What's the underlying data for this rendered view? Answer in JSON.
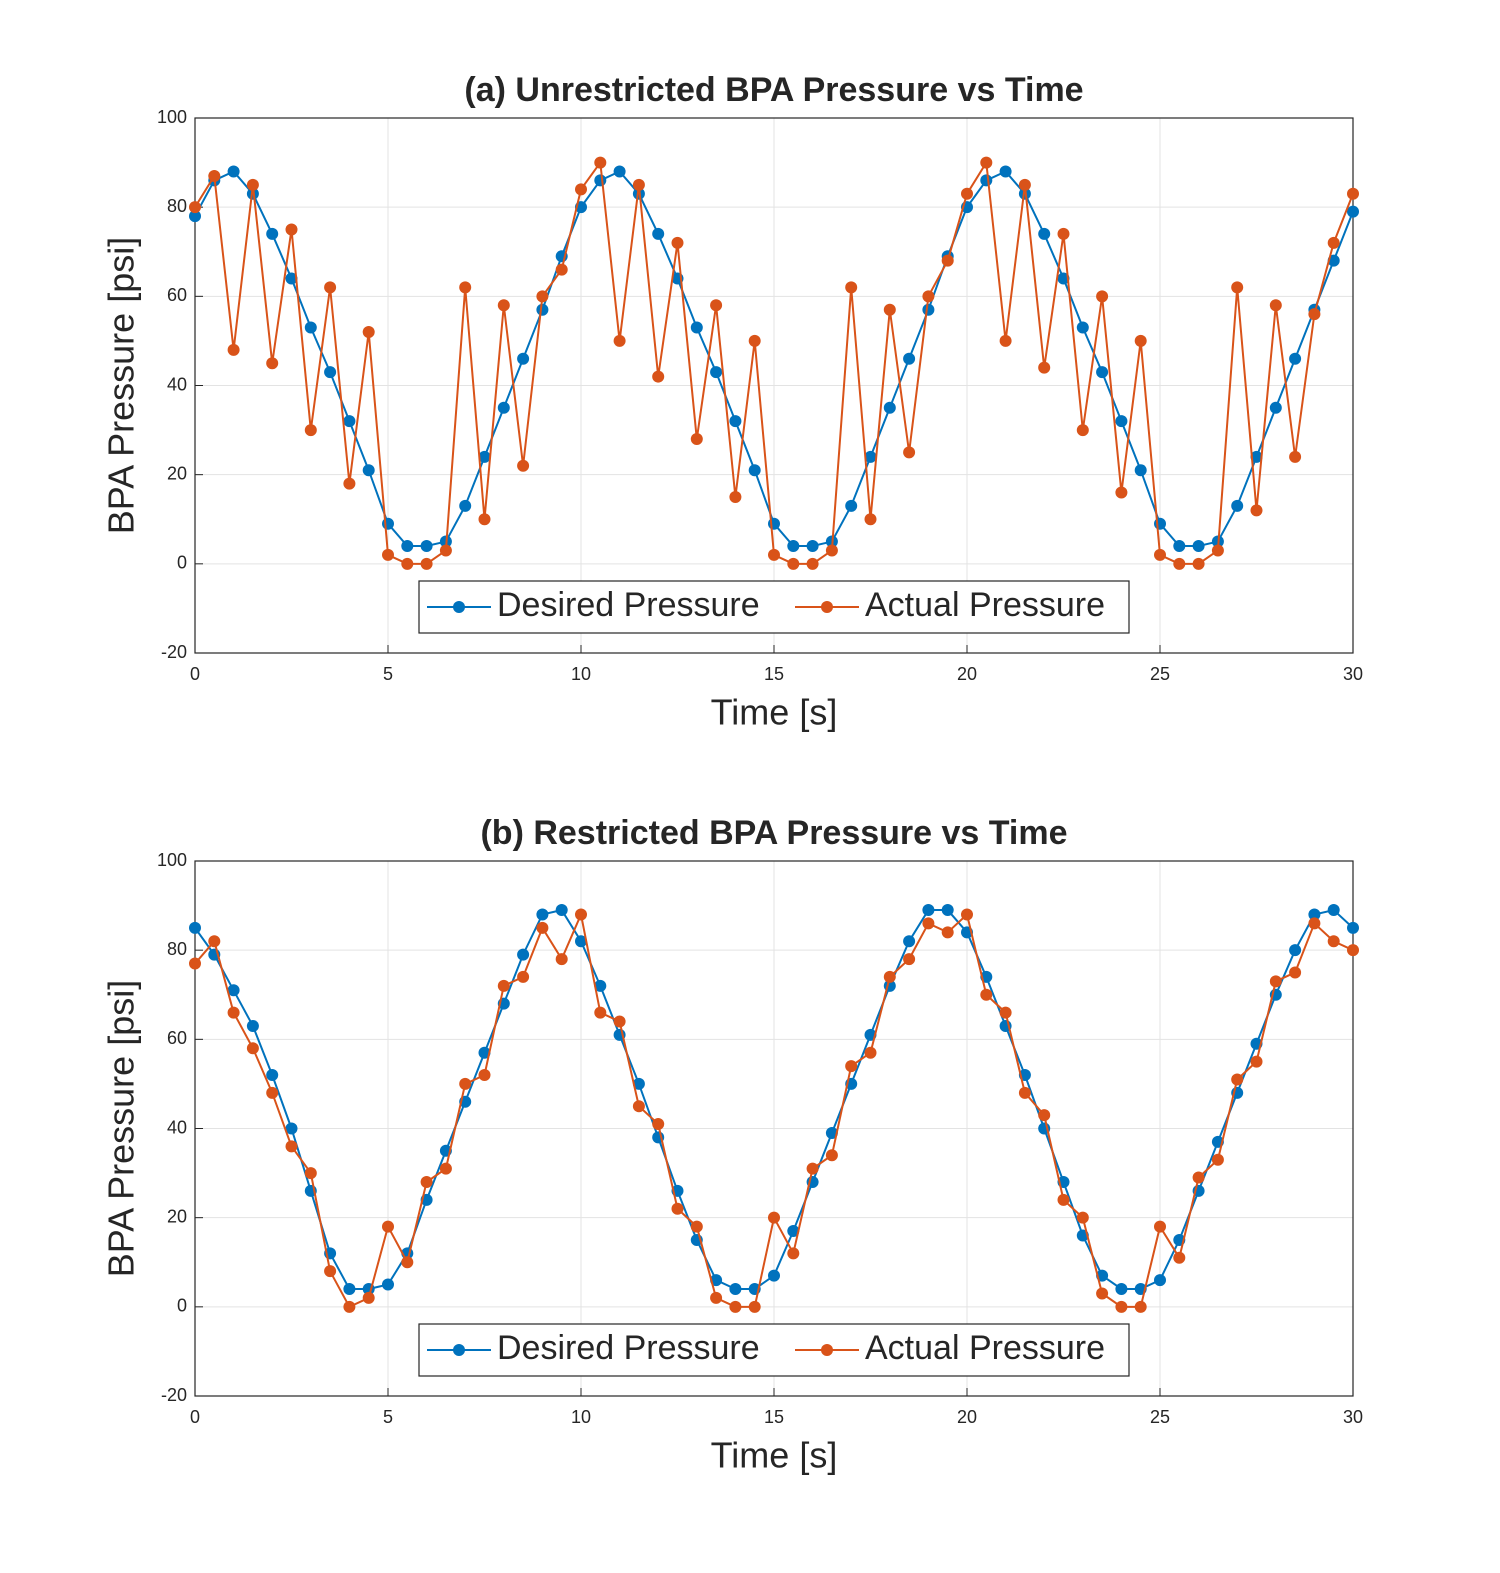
{
  "chart_data": [
    {
      "type": "line",
      "title": "(a) Unrestricted BPA Pressure vs Time",
      "xlabel": "Time [s]",
      "ylabel": "BPA Pressure [psi]",
      "x": [
        0,
        0.5,
        1,
        1.5,
        2,
        2.5,
        3,
        3.5,
        4,
        4.5,
        5,
        5.5,
        6,
        6.5,
        7,
        7.5,
        8,
        8.5,
        9,
        9.5,
        10,
        10.5,
        11,
        11.5,
        12,
        12.5,
        13,
        13.5,
        14,
        14.5,
        15,
        15.5,
        16,
        16.5,
        17,
        17.5,
        18,
        18.5,
        19,
        19.5,
        20,
        20.5,
        21,
        21.5,
        22,
        22.5,
        23,
        23.5,
        24,
        24.5,
        25,
        25.5,
        26,
        26.5,
        27,
        27.5,
        28,
        28.5,
        29,
        29.5,
        30
      ],
      "series": [
        {
          "name": "Desired Pressure",
          "color": "#0072bd",
          "values": [
            78,
            86,
            88,
            83,
            74,
            64,
            53,
            43,
            32,
            21,
            9,
            4,
            4,
            5,
            13,
            24,
            35,
            46,
            57,
            69,
            80,
            86,
            88,
            83,
            74,
            64,
            53,
            43,
            32,
            21,
            9,
            4,
            4,
            5,
            13,
            24,
            35,
            46,
            57,
            69,
            80,
            86,
            88,
            83,
            74,
            64,
            53,
            43,
            32,
            21,
            9,
            4,
            4,
            5,
            13,
            24,
            35,
            46,
            57,
            68,
            79
          ]
        },
        {
          "name": "Actual Pressure",
          "color": "#d95319",
          "values": [
            80,
            87,
            48,
            85,
            45,
            75,
            30,
            62,
            18,
            52,
            2,
            0,
            0,
            3,
            62,
            10,
            58,
            22,
            60,
            66,
            84,
            90,
            50,
            85,
            42,
            72,
            28,
            58,
            15,
            50,
            2,
            0,
            0,
            3,
            62,
            10,
            57,
            25,
            60,
            68,
            83,
            90,
            50,
            85,
            44,
            74,
            30,
            60,
            16,
            50,
            2,
            0,
            0,
            3,
            62,
            12,
            58,
            24,
            56,
            72,
            83
          ]
        }
      ],
      "xlim": [
        0,
        30
      ],
      "ylim": [
        -20,
        100
      ],
      "xticks": [
        0,
        5,
        10,
        15,
        20,
        25,
        30
      ],
      "yticks": [
        -20,
        0,
        20,
        40,
        60,
        80,
        100
      ],
      "grid": true,
      "legend": "south"
    },
    {
      "type": "line",
      "title": "(b) Restricted BPA Pressure vs Time",
      "xlabel": "Time [s]",
      "ylabel": "BPA Pressure [psi]",
      "x": [
        0,
        0.5,
        1,
        1.5,
        2,
        2.5,
        3,
        3.5,
        4,
        4.5,
        5,
        5.5,
        6,
        6.5,
        7,
        7.5,
        8,
        8.5,
        9,
        9.5,
        10,
        10.5,
        11,
        11.5,
        12,
        12.5,
        13,
        13.5,
        14,
        14.5,
        15,
        15.5,
        16,
        16.5,
        17,
        17.5,
        18,
        18.5,
        19,
        19.5,
        20,
        20.5,
        21,
        21.5,
        22,
        22.5,
        23,
        23.5,
        24,
        24.5,
        25,
        25.5,
        26,
        26.5,
        27,
        27.5,
        28,
        28.5,
        29,
        29.5,
        30
      ],
      "series": [
        {
          "name": "Desired Pressure",
          "color": "#0072bd",
          "values": [
            85,
            79,
            71,
            63,
            52,
            40,
            26,
            12,
            4,
            4,
            5,
            12,
            24,
            35,
            46,
            57,
            68,
            79,
            88,
            89,
            82,
            72,
            61,
            50,
            38,
            26,
            15,
            6,
            4,
            4,
            7,
            17,
            28,
            39,
            50,
            61,
            72,
            82,
            89,
            89,
            84,
            74,
            63,
            52,
            40,
            28,
            16,
            7,
            4,
            4,
            6,
            15,
            26,
            37,
            48,
            59,
            70,
            80,
            88,
            89,
            85
          ]
        },
        {
          "name": "Actual Pressure",
          "color": "#d95319",
          "values": [
            77,
            82,
            66,
            58,
            48,
            36,
            30,
            8,
            0,
            2,
            18,
            10,
            28,
            31,
            50,
            52,
            72,
            74,
            85,
            78,
            88,
            66,
            64,
            45,
            41,
            22,
            18,
            2,
            0,
            0,
            20,
            12,
            31,
            34,
            54,
            57,
            74,
            78,
            86,
            84,
            88,
            70,
            66,
            48,
            43,
            24,
            20,
            3,
            0,
            0,
            18,
            11,
            29,
            33,
            51,
            55,
            73,
            75,
            86,
            82,
            80
          ]
        }
      ],
      "xlim": [
        0,
        30
      ],
      "ylim": [
        -20,
        100
      ],
      "xticks": [
        0,
        5,
        10,
        15,
        20,
        25,
        30
      ],
      "yticks": [
        -20,
        0,
        20,
        40,
        60,
        80,
        100
      ],
      "grid": true,
      "legend": "south"
    }
  ]
}
